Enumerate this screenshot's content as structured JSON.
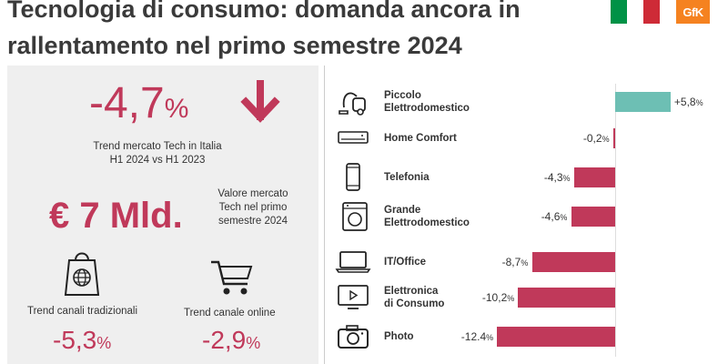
{
  "header": {
    "title_line1": "Tecnologia di consumo: domanda ancora in",
    "title_line2": "rallentamento nel primo semestre 2024",
    "logo_text": "GfK",
    "flag_colors": [
      "#009246",
      "#ffffff",
      "#ce2b37"
    ],
    "logo_color": "#f58220"
  },
  "colors": {
    "accent_red": "#c0395a",
    "positive_teal": "#6dbfb4",
    "panel_bg": "#efefef"
  },
  "summary": {
    "trend_value": "-4,7",
    "trend_unit": "%",
    "trend_direction_icon": "arrow-down-icon",
    "trend_caption_line1": "Trend mercato Tech in Italia",
    "trend_caption_line2": "H1 2024 vs H1 2023",
    "market_value": "€ 7 Mld.",
    "market_caption_line1": "Valore mercato",
    "market_caption_line2": "Tech nel primo",
    "market_caption_line3": "semestre 2024",
    "channels": [
      {
        "label": "Trend canali tradizionali",
        "value": "-5,3",
        "unit": "%",
        "icon": "shopping-bag-globe-icon"
      },
      {
        "label": "Trend canale online",
        "value": "-2,9",
        "unit": "%",
        "icon": "shopping-cart-icon"
      }
    ]
  },
  "chart_data": {
    "type": "bar",
    "orientation": "horizontal",
    "categories": [
      "Piccolo Elettrodomestico",
      "Home Comfort",
      "Telefonia",
      "Grande Elettrodomestico",
      "IT/Office",
      "Elettronica di Consumo",
      "Photo"
    ],
    "category_lines": [
      [
        "Piccolo",
        "Elettrodomestico"
      ],
      [
        "Home Comfort"
      ],
      [
        "Telefonia"
      ],
      [
        "Grande",
        "Elettrodomestico"
      ],
      [
        "IT/Office"
      ],
      [
        "Elettronica",
        "di Consumo"
      ],
      [
        "Photo"
      ]
    ],
    "icons": [
      "vacuum-cleaner-icon",
      "air-conditioner-icon",
      "smartphone-icon",
      "washing-machine-icon",
      "laptop-icon",
      "tv-play-icon",
      "camera-icon"
    ],
    "values": [
      5.8,
      -0.2,
      -4.3,
      -4.6,
      -8.7,
      -10.2,
      -12.4
    ],
    "value_labels": [
      "+5,8",
      "-0,2",
      "-4,3",
      "-4,6",
      "-8,7",
      "-10,2",
      "-12.4"
    ],
    "unit": "%",
    "positive_color": "#6dbfb4",
    "negative_color": "#c0395a"
  }
}
